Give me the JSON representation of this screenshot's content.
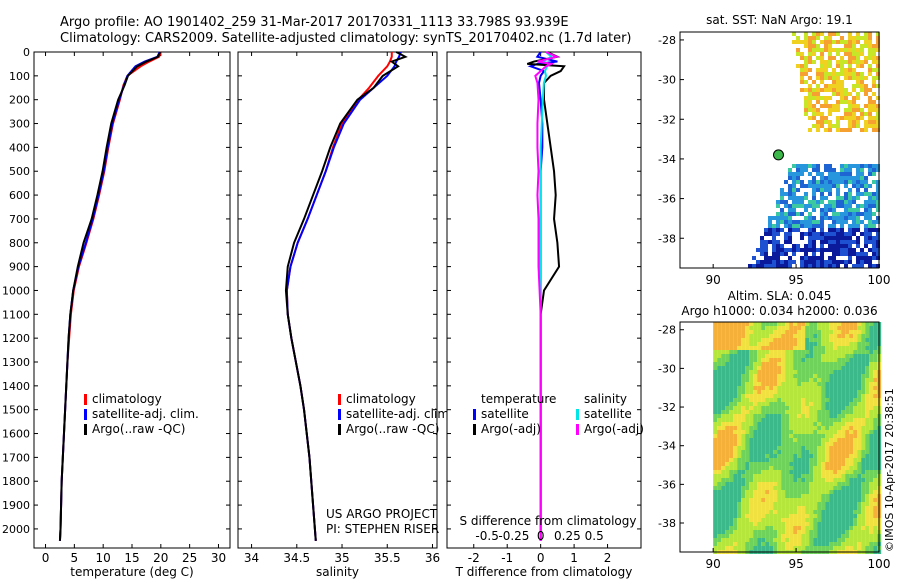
{
  "header": {
    "line1": "Argo profile: AO 1901402_259 31-Mar-2017 20170331_1113 33.798S 93.939E",
    "line2": "Climatology: CARS2009. Satellite-adjusted climatology: synTS_20170402.nc (1.7d later)"
  },
  "colors": {
    "climatology": "#ff0000",
    "satellite": "#0000ff",
    "argo": "#000000",
    "sat_sal": "#00e5e5",
    "argo_sal": "#ff00ff"
  },
  "credits": {
    "project": "US ARGO PROJECT",
    "pi": "PI: STEPHEN RISER",
    "timestamp": "©IMOS 10-Apr-2017 20:38:51"
  },
  "chart_data": [
    {
      "type": "line",
      "id": "temperature",
      "xlabel": "temperature (deg C)",
      "xticks": [
        "0",
        "5",
        "10",
        "15",
        "20",
        "25",
        "30"
      ],
      "xlim": [
        -2,
        32
      ],
      "ylim": [
        0,
        2080
      ],
      "yticks": [
        "0",
        "100",
        "200",
        "300",
        "400",
        "500",
        "600",
        "700",
        "800",
        "900",
        "1000",
        "1100",
        "1200",
        "1300",
        "1400",
        "1500",
        "1600",
        "1700",
        "1800",
        "1900",
        "2000"
      ],
      "legend": [
        "climatology",
        "satellite-adj. clim.",
        "Argo(..raw -QC)"
      ],
      "depth": [
        0,
        20,
        40,
        60,
        100,
        140,
        200,
        300,
        400,
        500,
        600,
        700,
        800,
        900,
        1000,
        1100,
        1200,
        1300,
        1400,
        1500,
        1600,
        1700,
        1800,
        1900,
        2000,
        2050
      ],
      "series": [
        {
          "name": "climatology",
          "values": [
            20.0,
            19.7,
            18.0,
            16.5,
            14.2,
            13.5,
            12.9,
            11.7,
            10.9,
            10.2,
            9.3,
            8.3,
            7.1,
            5.8,
            4.9,
            4.4,
            4.1,
            3.8,
            3.6,
            3.4,
            3.2,
            3.0,
            2.8,
            2.7,
            2.6,
            2.5
          ]
        },
        {
          "name": "satellite-adj. clim.",
          "values": [
            19.8,
            19.4,
            17.2,
            15.6,
            14.2,
            13.6,
            12.8,
            11.6,
            10.8,
            10.1,
            9.2,
            8.2,
            7.0,
            5.7,
            4.8,
            4.3,
            4.0,
            3.8,
            3.6,
            3.4,
            3.2,
            3.0,
            2.8,
            2.7,
            2.6,
            2.5
          ]
        },
        {
          "name": "Argo(..raw -QC)",
          "values": [
            19.9,
            19.5,
            17.5,
            15.9,
            14.3,
            13.7,
            12.6,
            11.4,
            10.6,
            9.9,
            9.0,
            8.0,
            6.6,
            5.6,
            4.8,
            4.3,
            4.0,
            3.8,
            3.6,
            3.4,
            3.2,
            3.0,
            2.8,
            2.7,
            2.6,
            2.5
          ]
        }
      ]
    },
    {
      "type": "line",
      "id": "salinity",
      "xlabel": "salinity",
      "xticks": [
        "34",
        "34.5",
        "35",
        "35.5",
        "36"
      ],
      "xlim": [
        33.85,
        36.05
      ],
      "legend": [
        "climatology",
        "satellite-adj. clim.",
        "Argo(..raw -QC)"
      ],
      "depth": [
        0,
        20,
        40,
        60,
        100,
        150,
        200,
        300,
        400,
        500,
        600,
        700,
        800,
        900,
        1000,
        1100,
        1200,
        1300,
        1400,
        1500,
        1600,
        1700,
        1800,
        1900,
        2000,
        2050
      ],
      "series": [
        {
          "name": "climatology",
          "values": [
            35.55,
            35.55,
            35.53,
            35.5,
            35.4,
            35.3,
            35.18,
            35.0,
            34.9,
            34.82,
            34.72,
            34.62,
            34.51,
            34.43,
            34.39,
            34.4,
            34.44,
            34.49,
            34.54,
            34.58,
            34.61,
            34.64,
            34.66,
            34.68,
            34.7,
            34.71
          ]
        },
        {
          "name": "satellite-adj. clim.",
          "values": [
            35.65,
            35.63,
            35.6,
            35.58,
            35.5,
            35.35,
            35.2,
            35.02,
            34.91,
            34.82,
            34.72,
            34.62,
            34.51,
            34.43,
            34.39,
            34.4,
            34.44,
            34.49,
            34.54,
            34.58,
            34.61,
            34.64,
            34.66,
            34.68,
            34.7,
            34.71
          ]
        },
        {
          "name": "Argo(..raw -QC)",
          "values": [
            35.6,
            35.7,
            35.55,
            35.62,
            35.45,
            35.35,
            35.17,
            34.98,
            34.87,
            34.78,
            34.68,
            34.58,
            34.47,
            34.4,
            34.38,
            34.4,
            34.44,
            34.49,
            34.54,
            34.58,
            34.61,
            34.64,
            34.66,
            34.68,
            34.7,
            34.71
          ]
        }
      ]
    },
    {
      "type": "line",
      "id": "difference",
      "xlabel": "T difference from climatology",
      "xticks": [
        "-2",
        "-1",
        "0",
        "1",
        "2"
      ],
      "xlim": [
        -2.8,
        3.0
      ],
      "top_label": "S difference from climatology",
      "top_ticks": [
        "-0.5",
        "-0.25",
        "0",
        "0.25",
        "0.5"
      ],
      "legend_temperature_title": "temperature",
      "legend_salinity_title": "salinity",
      "legend": [
        "satellite",
        "Argo(-adj)",
        "satellite",
        "Argo(-adj)"
      ],
      "depth": [
        0,
        20,
        40,
        50,
        60,
        80,
        100,
        130,
        200,
        300,
        400,
        500,
        600,
        700,
        800,
        900,
        1000,
        1100,
        1200,
        1300,
        1400,
        1500,
        1600,
        1700,
        1800,
        1900,
        2000,
        2050
      ],
      "series": [
        {
          "name": "temperature satellite",
          "values": [
            0.0,
            -0.1,
            0.5,
            -0.1,
            -0.3,
            0.1,
            0.0,
            -0.05,
            0.0,
            0.05,
            0.05,
            0.0,
            0.0,
            0.0,
            0.0,
            0.0,
            0.0,
            0.0,
            0.0,
            0.0,
            0.0,
            0.0,
            0.0,
            0.0,
            0.0,
            0.0,
            0.0,
            0.0
          ]
        },
        {
          "name": "temperature Argo(-adj)",
          "values": [
            0.2,
            0.5,
            -0.2,
            -0.4,
            0.7,
            0.6,
            0.3,
            0.1,
            0.1,
            0.2,
            0.3,
            0.4,
            0.45,
            0.4,
            0.5,
            0.55,
            0.1,
            0.0,
            0.0,
            0.0,
            0.0,
            0.0,
            0.0,
            0.0,
            0.0,
            0.0,
            0.0,
            0.0
          ]
        },
        {
          "name": "salinity satellite",
          "values": [
            0.05,
            0.1,
            0.02,
            0.08,
            0.06,
            0.04,
            0.05,
            0.03,
            0.02,
            0.01,
            0.0,
            0.0,
            0.0,
            0.0,
            0.0,
            0.0,
            0.0,
            0.0,
            0.0,
            0.0,
            0.0,
            0.0,
            0.0,
            0.0,
            0.0,
            0.0,
            0.0,
            0.0
          ]
        },
        {
          "name": "salinity Argo(-adj)",
          "values": [
            0.05,
            0.15,
            -0.03,
            0.1,
            0.05,
            0.0,
            -0.05,
            -0.03,
            -0.02,
            -0.03,
            -0.03,
            -0.02,
            -0.03,
            -0.02,
            -0.02,
            -0.02,
            -0.01,
            0.0,
            0.0,
            0.0,
            0.0,
            0.0,
            0.0,
            0.0,
            0.0,
            0.0,
            0.0,
            0.0
          ]
        }
      ]
    },
    {
      "type": "heatmap",
      "id": "sst_map",
      "title": "sat. SST: NaN Argo: 19.1",
      "xticks": [
        "90",
        "95",
        "100"
      ],
      "yticks": [
        "-28",
        "-30",
        "-32",
        "-34",
        "-36",
        "-38"
      ],
      "xlim": [
        88,
        100
      ],
      "ylim": [
        -39.5,
        -27.6
      ],
      "argo_position": {
        "lon": 93.939,
        "lat": -33.798
      }
    },
    {
      "type": "heatmap",
      "id": "sla_map",
      "title": "Altim. SLA: 0.045",
      "subtitle": "Argo h1000: 0.034 h2000: 0.036",
      "xticks": [
        "90",
        "95",
        "100"
      ],
      "yticks": [
        "-28",
        "-30",
        "-32",
        "-34",
        "-36",
        "-38"
      ],
      "xlim": [
        88,
        100
      ],
      "ylim": [
        -39.5,
        -27.6
      ]
    }
  ]
}
